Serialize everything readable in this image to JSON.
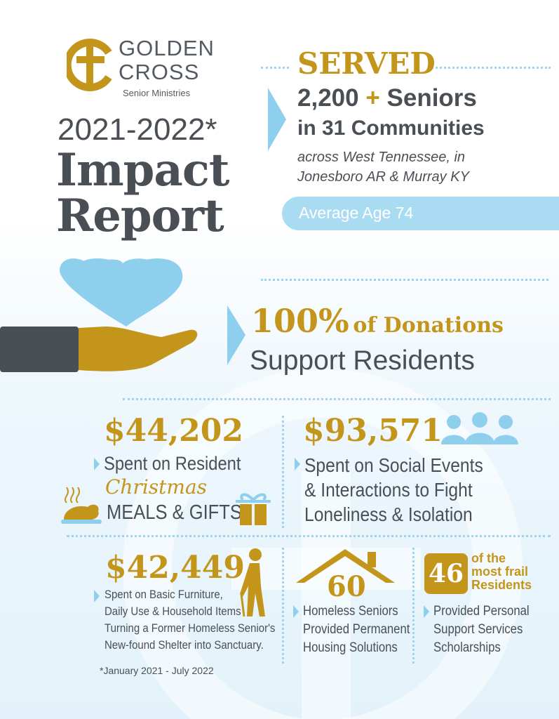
{
  "logo": {
    "line1": "GOLDEN",
    "line2": "CROSS",
    "line3": "Senior Ministries"
  },
  "title": {
    "years": "2021-2022*",
    "line1": "Impact",
    "line2": "Report"
  },
  "served": {
    "heading": "SERVED",
    "count": "2,200",
    "plus": "+",
    "count_label": "Seniors",
    "communities": "in 31 Communities",
    "region": "across West Tennessee, in Jonesboro AR & Murray KY",
    "average_age": "Average Age 74"
  },
  "donations": {
    "percent": "100%",
    "of_label": "of Donations",
    "support": "Support Residents"
  },
  "christmas": {
    "amount": "$44,202",
    "line1": "Spent on Resident",
    "script": "Christmas",
    "line2": "MEALS & GIFTS"
  },
  "social": {
    "amount": "$93,571",
    "lines": [
      "Spent on Social Events",
      "& Interactions to Fight",
      "Loneliness & Isolation"
    ]
  },
  "furniture": {
    "amount": "$42,449",
    "lines": [
      "Spent on Basic Furniture,",
      "Daily Use & Household Items",
      "Turning a Former Homeless Senior's",
      "New-found Shelter into Sanctuary."
    ]
  },
  "housing": {
    "number": "60",
    "lines": [
      "Homeless Seniors",
      "Provided Permanent",
      "Housing Solutions"
    ]
  },
  "scholarships": {
    "number": "46",
    "label_line1": "of the",
    "label_line2": "most frail",
    "label_line3": "Residents",
    "lines": [
      "Provided Personal",
      "Support Services",
      "Scholarships"
    ]
  },
  "footnote": "*January 2021 - July 2022",
  "colors": {
    "gold": "#c4951b",
    "dark": "#4a4f56",
    "blue": "#8ecfee",
    "band": "#a9dcf3"
  }
}
